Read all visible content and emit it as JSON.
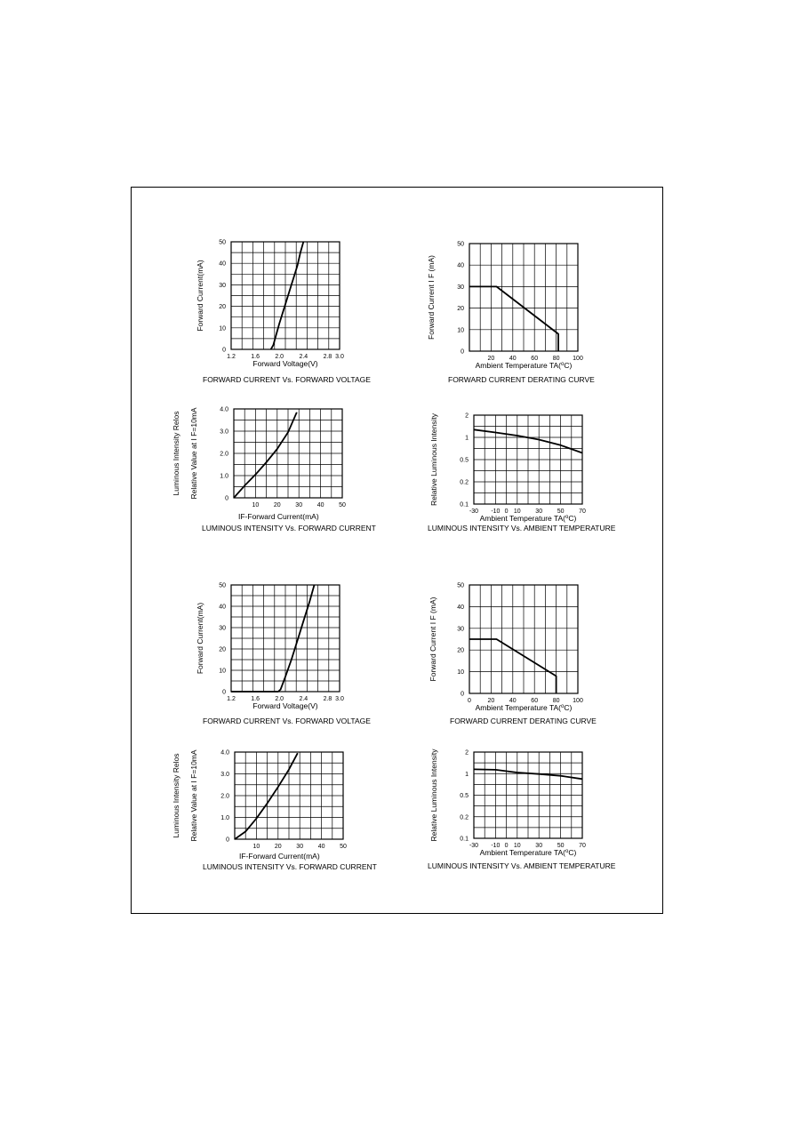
{
  "charts": [
    {
      "id": "c1",
      "type": "line",
      "ylabel_lines": [
        "Forward Current(mA)"
      ],
      "xlabel_segments": [
        {
          "text": "Forward Voltage(V)"
        }
      ],
      "caption": "FORWARD CURRENT Vs. FORWARD VOLTAGE",
      "x_ticks": [
        {
          "v": 1.2,
          "label": "1.2"
        },
        {
          "v": 1.6,
          "label": "1.6"
        },
        {
          "v": 2.0,
          "label": "2.0"
        },
        {
          "v": 2.4,
          "label": "2.4"
        },
        {
          "v": 2.8,
          "label": "2.8"
        },
        {
          "v": 3.0,
          "label": "3.0"
        }
      ],
      "y_ticks": [
        {
          "v": 0,
          "label": "0"
        },
        {
          "v": 10,
          "label": "10"
        },
        {
          "v": 20,
          "label": "20"
        },
        {
          "v": 30,
          "label": "30"
        },
        {
          "v": 40,
          "label": "40"
        },
        {
          "v": 50,
          "label": "50"
        }
      ],
      "series": [
        {
          "x": [
            1.86,
            1.9,
            2.0,
            2.1,
            2.2,
            2.3,
            2.35,
            2.4
          ],
          "y": [
            0,
            2,
            12,
            21,
            30,
            39,
            45,
            50
          ]
        }
      ]
    },
    {
      "id": "c2",
      "type": "line",
      "ylabel_lines": [
        "Forward Current I F (mA)"
      ],
      "xlabel_segments": [
        {
          "text": "Ambient Temperature TA("
        },
        {
          "text": "o",
          "sup": true
        },
        {
          "text": "C)"
        }
      ],
      "caption": "FORWARD CURRENT DERATING CURVE",
      "x_ticks": [
        {
          "v": 20,
          "label": "20"
        },
        {
          "v": 40,
          "label": "40"
        },
        {
          "v": 60,
          "label": "60"
        },
        {
          "v": 80,
          "label": "80"
        },
        {
          "v": 100,
          "label": "100"
        }
      ],
      "y_ticks": [
        {
          "v": 0,
          "label": "0"
        },
        {
          "v": 10,
          "label": "10"
        },
        {
          "v": 20,
          "label": "20"
        },
        {
          "v": 30,
          "label": "30"
        },
        {
          "v": 40,
          "label": "40"
        },
        {
          "v": 50,
          "label": "50"
        }
      ],
      "series": [
        {
          "x": [
            0,
            25,
            82,
            82
          ],
          "y": [
            30,
            30,
            8,
            0
          ]
        }
      ]
    },
    {
      "id": "c3",
      "type": "line",
      "ylabel_lines": [
        "Luminous Intensity Relos",
        "Relative Value at I F=10mA"
      ],
      "xlabel_segments": [
        {
          "text": "IF-Forward Current(mA)"
        }
      ],
      "caption": "LUMINOUS INTENSITY Vs. FORWARD CURRENT",
      "x_ticks": [
        {
          "v": 10,
          "label": "10"
        },
        {
          "v": 20,
          "label": "20"
        },
        {
          "v": 30,
          "label": "30"
        },
        {
          "v": 40,
          "label": "40"
        },
        {
          "v": 50,
          "label": "50"
        }
      ],
      "y_ticks": [
        {
          "v": 0,
          "label": "0"
        },
        {
          "v": 1.0,
          "label": "1.0"
        },
        {
          "v": 2.0,
          "label": "2.0"
        },
        {
          "v": 3.0,
          "label": "3.0"
        },
        {
          "v": 4.0,
          "label": "4.0"
        }
      ],
      "series": [
        {
          "x": [
            0,
            5,
            10,
            15,
            20,
            25,
            29
          ],
          "y": [
            0,
            0.55,
            1.05,
            1.6,
            2.2,
            2.95,
            3.85
          ]
        }
      ]
    },
    {
      "id": "c4",
      "type": "line",
      "ylabel_lines": [
        "Relative Luminous Intensity"
      ],
      "xlabel_segments": [
        {
          "text": "Ambient Temperature TA("
        },
        {
          "text": "o",
          "sup": true
        },
        {
          "text": "C)"
        }
      ],
      "caption": "LUMINOUS INTENSITY Vs. AMBIENT TEMPERATURE",
      "x_ticks": [
        {
          "v": -30,
          "label": "-30"
        },
        {
          "v": -10,
          "label": "-10"
        },
        {
          "v": 0,
          "label": "0"
        },
        {
          "v": 10,
          "label": "10"
        },
        {
          "v": 30,
          "label": "30"
        },
        {
          "v": 50,
          "label": "50"
        },
        {
          "v": 70,
          "label": "70"
        }
      ],
      "y_ticks": [
        {
          "v": 0,
          "label": "0.1"
        },
        {
          "v": 1,
          "label": "0.2"
        },
        {
          "v": 2,
          "label": "0.5"
        },
        {
          "v": 3,
          "label": "1"
        },
        {
          "v": 4,
          "label": "2"
        }
      ],
      "series": [
        {
          "x": [
            -30,
            -10,
            10,
            30,
            50,
            70
          ],
          "y": [
            3.35,
            3.22,
            3.08,
            2.9,
            2.65,
            2.3
          ]
        }
      ]
    },
    {
      "id": "c5",
      "type": "line",
      "ylabel_lines": [
        "Forward Current(mA)"
      ],
      "xlabel_segments": [
        {
          "text": "Forward Voltage(V)"
        }
      ],
      "caption": "FORWARD CURRENT Vs. FORWARD VOLTAGE",
      "x_ticks": [
        {
          "v": 1.2,
          "label": "1.2"
        },
        {
          "v": 1.6,
          "label": "1.6"
        },
        {
          "v": 2.0,
          "label": "2.0"
        },
        {
          "v": 2.4,
          "label": "2.4"
        },
        {
          "v": 2.8,
          "label": "2.8"
        },
        {
          "v": 3.0,
          "label": "3.0"
        }
      ],
      "y_ticks": [
        {
          "v": 0,
          "label": "0"
        },
        {
          "v": 10,
          "label": "10"
        },
        {
          "v": 20,
          "label": "20"
        },
        {
          "v": 30,
          "label": "30"
        },
        {
          "v": 40,
          "label": "40"
        },
        {
          "v": 50,
          "label": "50"
        }
      ],
      "series": [
        {
          "x": [
            1.2,
            1.98,
            2.02,
            2.1,
            2.2,
            2.3,
            2.4,
            2.5,
            2.58
          ],
          "y": [
            0,
            0,
            1,
            7,
            15,
            24,
            33,
            42,
            50
          ]
        }
      ]
    },
    {
      "id": "c6",
      "type": "line",
      "ylabel_lines": [
        "Forward Current I F (mA)"
      ],
      "xlabel_segments": [
        {
          "text": "Ambient Temperature TA("
        },
        {
          "text": "o",
          "sup": true
        },
        {
          "text": "C)"
        }
      ],
      "caption": "FORWARD CURRENT DERATING CURVE",
      "x_ticks": [
        {
          "v": 0,
          "label": "0"
        },
        {
          "v": 20,
          "label": "20"
        },
        {
          "v": 40,
          "label": "40"
        },
        {
          "v": 60,
          "label": "60"
        },
        {
          "v": 80,
          "label": "80"
        },
        {
          "v": 100,
          "label": "100"
        }
      ],
      "y_ticks": [
        {
          "v": 0,
          "label": "0"
        },
        {
          "v": 10,
          "label": "10"
        },
        {
          "v": 20,
          "label": "20"
        },
        {
          "v": 30,
          "label": "30"
        },
        {
          "v": 40,
          "label": "40"
        },
        {
          "v": 50,
          "label": "50"
        }
      ],
      "series": [
        {
          "x": [
            0,
            25,
            80,
            80
          ],
          "y": [
            25,
            25,
            8,
            0
          ]
        }
      ]
    },
    {
      "id": "c7",
      "type": "line",
      "ylabel_lines": [
        "Luminous Intensity Relos",
        "Relative Value at I F=10mA"
      ],
      "xlabel_segments": [
        {
          "text": "IF-Forward Current(mA)"
        }
      ],
      "caption": "LUMINOUS INTENSITY Vs. FORWARD CURRENT",
      "x_ticks": [
        {
          "v": 10,
          "label": "10"
        },
        {
          "v": 20,
          "label": "20"
        },
        {
          "v": 30,
          "label": "30"
        },
        {
          "v": 40,
          "label": "40"
        },
        {
          "v": 50,
          "label": "50"
        }
      ],
      "y_ticks": [
        {
          "v": 0,
          "label": "0"
        },
        {
          "v": 1.0,
          "label": "1.0"
        },
        {
          "v": 2.0,
          "label": "2.0"
        },
        {
          "v": 3.0,
          "label": "3.0"
        },
        {
          "v": 4.0,
          "label": "4.0"
        }
      ],
      "series": [
        {
          "x": [
            0,
            5,
            10,
            15,
            20,
            25,
            29
          ],
          "y": [
            0,
            0.35,
            0.95,
            1.65,
            2.4,
            3.2,
            3.95
          ]
        }
      ]
    },
    {
      "id": "c8",
      "type": "line",
      "ylabel_lines": [
        "Relative Luminous Intensity"
      ],
      "xlabel_segments": [
        {
          "text": "Ambient Temperature TA("
        },
        {
          "text": "o",
          "sup": true
        },
        {
          "text": "C)"
        }
      ],
      "caption": "LUMINOUS INTENSITY Vs. AMBIENT TEMPERATURE",
      "x_ticks": [
        {
          "v": -30,
          "label": "-30"
        },
        {
          "v": -10,
          "label": "-10"
        },
        {
          "v": 0,
          "label": "0"
        },
        {
          "v": 10,
          "label": "10"
        },
        {
          "v": 30,
          "label": "30"
        },
        {
          "v": 50,
          "label": "50"
        },
        {
          "v": 70,
          "label": "70"
        }
      ],
      "y_ticks": [
        {
          "v": 0,
          "label": "0.1"
        },
        {
          "v": 1,
          "label": "0.2"
        },
        {
          "v": 2,
          "label": "0.5"
        },
        {
          "v": 3,
          "label": "1"
        },
        {
          "v": 4,
          "label": "2"
        }
      ],
      "series": [
        {
          "x": [
            -30,
            -10,
            10,
            30,
            50,
            70
          ],
          "y": [
            3.2,
            3.18,
            3.05,
            2.98,
            2.9,
            2.75
          ]
        }
      ]
    }
  ]
}
